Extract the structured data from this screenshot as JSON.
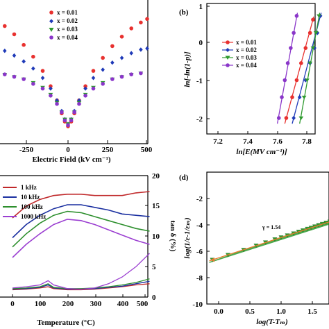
{
  "panels": {
    "a": {
      "xlabel": "Electric Field  (kV cm⁻¹)",
      "xticks": [
        "-250",
        "0",
        "250",
        "500"
      ]
    },
    "b": {
      "tag": "(b)",
      "xlabel": "ln[E(MV cm⁻¹)]",
      "ylabel": "ln[-ln(1-p)]",
      "xticks": [
        "7.2",
        "7.4",
        "7.6",
        "7.8"
      ],
      "yticks": [
        "1",
        "0",
        "-1",
        "-2"
      ]
    },
    "c": {
      "xlabel": "Temperature (°C)",
      "ylabel_right": "tan δ (%)",
      "xticks": [
        "0",
        "100",
        "200",
        "300",
        "400",
        "500"
      ],
      "yticks_right": [
        "20",
        "15",
        "10",
        "5",
        "0"
      ]
    },
    "d": {
      "tag": "(d)",
      "xlabel": "log(T-Tₘ)",
      "ylabel": "log(1/ε-1/εₘ)",
      "annotation": "γ = 1.54",
      "xticks": [
        "0.0",
        "0.5",
        "1.0",
        "1.5"
      ],
      "yticks": [
        "-2",
        "-4",
        "-6",
        "-8",
        "-10"
      ]
    }
  },
  "colors": {
    "x001": "#e8312f",
    "x002": "#1f3ab8",
    "x003": "#2e9a2e",
    "x004": "#8a36c9",
    "kHz1": "#c0282a",
    "kHz10": "#1a2fa0",
    "kHz100": "#2d8f2d",
    "kHz1000": "#9b3fd1",
    "fit": "#e87d2f"
  },
  "chart_data": [
    {
      "panel": "a",
      "type": "scatter",
      "xlabel": "Electric Field  (kV cm⁻¹)",
      "xlim": [
        -420,
        500
      ],
      "legend_position": "top-right",
      "series": [
        {
          "name": "x = 0.01",
          "marker": "circle",
          "x": [
            -400,
            -340,
            -280,
            -220,
            -160,
            -110,
            -70,
            -40,
            -20,
            0,
            20,
            40,
            70,
            110,
            160,
            220,
            280,
            340,
            400,
            460,
            500
          ],
          "y": [
            0.85,
            0.78,
            0.69,
            0.59,
            0.47,
            0.34,
            0.22,
            0.11,
            0.04,
            0.0,
            0.04,
            0.11,
            0.22,
            0.34,
            0.47,
            0.58,
            0.68,
            0.76,
            0.83,
            0.88,
            0.91
          ]
        },
        {
          "name": "x = 0.02",
          "marker": "diamond",
          "x": [
            -400,
            -340,
            -280,
            -220,
            -160,
            -110,
            -70,
            -40,
            -20,
            0,
            20,
            40,
            70,
            110,
            160,
            220,
            280,
            340,
            400,
            460,
            500
          ],
          "y": [
            0.64,
            0.6,
            0.55,
            0.49,
            0.41,
            0.32,
            0.22,
            0.13,
            0.06,
            0.02,
            0.06,
            0.13,
            0.22,
            0.32,
            0.41,
            0.48,
            0.54,
            0.58,
            0.62,
            0.65,
            0.66
          ]
        },
        {
          "name": "x = 0.03",
          "marker": "triangle-down",
          "x": [
            -400,
            -340,
            -280,
            -220,
            -160,
            -110,
            -70,
            -40,
            -20,
            0,
            20,
            40,
            70,
            110,
            160,
            220,
            280,
            340,
            400,
            460
          ],
          "y": [
            0.44,
            0.42,
            0.4,
            0.37,
            0.33,
            0.27,
            0.2,
            0.12,
            0.06,
            0.02,
            0.06,
            0.12,
            0.2,
            0.27,
            0.33,
            0.37,
            0.4,
            0.42,
            0.44,
            0.45
          ]
        },
        {
          "name": "x = 0.04",
          "marker": "circle",
          "x": [
            -400,
            -340,
            -280,
            -220,
            -160,
            -110,
            -70,
            -40,
            -20,
            0,
            20,
            40,
            70,
            110,
            160,
            220,
            280,
            340,
            400,
            460
          ],
          "y": [
            0.44,
            0.42,
            0.4,
            0.36,
            0.32,
            0.26,
            0.19,
            0.12,
            0.05,
            0.01,
            0.05,
            0.12,
            0.19,
            0.26,
            0.32,
            0.36,
            0.4,
            0.42,
            0.44,
            0.45
          ]
        }
      ]
    },
    {
      "panel": "b",
      "type": "scatter",
      "xlabel": "ln[E(MV cm⁻¹)]",
      "ylabel": "ln[-ln(1-p)]",
      "xlim": [
        7.15,
        7.95
      ],
      "ylim": [
        -2.3,
        1.0
      ],
      "legend_position": "center-left",
      "series": [
        {
          "name": "x = 0.01",
          "marker": "circle",
          "x": [
            7.66,
            7.7,
            7.73,
            7.76,
            7.79,
            7.82,
            7.84
          ],
          "y": [
            -2.0,
            -1.45,
            -1.0,
            -0.55,
            -0.15,
            0.25,
            0.6
          ]
        },
        {
          "name": "x = 0.02",
          "marker": "diamond",
          "x": [
            7.71,
            7.75,
            7.79,
            7.82,
            7.85,
            7.87,
            7.89
          ],
          "y": [
            -2.0,
            -1.45,
            -1.0,
            -0.55,
            -0.15,
            0.25,
            0.7
          ]
        },
        {
          "name": "x = 0.03",
          "marker": "triangle-down",
          "x": [
            7.76,
            7.78,
            7.8,
            7.82,
            7.84,
            7.86,
            7.88
          ],
          "y": [
            -2.0,
            -1.45,
            -1.0,
            -0.55,
            -0.15,
            0.25,
            0.7
          ]
        },
        {
          "name": "x = 0.04",
          "marker": "circle",
          "x": [
            7.61,
            7.63,
            7.65,
            7.67,
            7.69,
            7.71,
            7.73
          ],
          "y": [
            -2.0,
            -1.45,
            -1.0,
            -0.55,
            -0.15,
            0.25,
            0.7
          ]
        }
      ]
    },
    {
      "panel": "c",
      "type": "line",
      "xlabel": "Temperature (°C)",
      "ylabel_right": "tan δ (%)",
      "xlim": [
        -10,
        510
      ],
      "legend_position": "top-left",
      "series": [
        {
          "name": "1 kHz",
          "x": [
            0,
            50,
            100,
            150,
            200,
            250,
            300,
            350,
            400,
            450,
            500
          ],
          "y": [
            0.6,
            0.69,
            0.74,
            0.77,
            0.78,
            0.78,
            0.77,
            0.77,
            0.77,
            0.79,
            0.8
          ]
        },
        {
          "name": "10 kHz",
          "x": [
            0,
            50,
            100,
            150,
            200,
            250,
            300,
            350,
            400,
            450,
            500
          ],
          "y": [
            0.45,
            0.55,
            0.62,
            0.67,
            0.7,
            0.7,
            0.68,
            0.66,
            0.63,
            0.62,
            0.61
          ]
        },
        {
          "name": "100 kHz",
          "x": [
            0,
            50,
            100,
            150,
            200,
            250,
            300,
            350,
            400,
            450,
            500
          ],
          "y": [
            0.38,
            0.48,
            0.56,
            0.62,
            0.65,
            0.64,
            0.61,
            0.58,
            0.55,
            0.52,
            0.5
          ]
        },
        {
          "name": "1000 kHz",
          "x": [
            0,
            50,
            100,
            150,
            200,
            250,
            300,
            350,
            400,
            450,
            500
          ],
          "y": [
            0.3,
            0.4,
            0.48,
            0.55,
            0.59,
            0.58,
            0.55,
            0.51,
            0.47,
            0.43,
            0.4
          ]
        }
      ],
      "tan_delta_series": [
        {
          "name": "1 kHz",
          "x": [
            0,
            50,
            100,
            130,
            150,
            200,
            250,
            300,
            350,
            400,
            450,
            500
          ],
          "y": [
            1.2,
            1.3,
            1.5,
            1.7,
            1.4,
            1.2,
            1.2,
            1.3,
            1.5,
            1.7,
            2.0,
            2.2
          ]
        },
        {
          "name": "10 kHz",
          "x": [
            0,
            50,
            100,
            130,
            150,
            200,
            250,
            300,
            350,
            400,
            450,
            500
          ],
          "y": [
            1.3,
            1.4,
            1.6,
            2.0,
            1.5,
            1.3,
            1.3,
            1.4,
            1.6,
            1.8,
            2.2,
            2.6
          ]
        },
        {
          "name": "100 kHz",
          "x": [
            0,
            50,
            100,
            130,
            150,
            200,
            250,
            300,
            350,
            400,
            450,
            500
          ],
          "y": [
            1.4,
            1.5,
            1.7,
            2.2,
            1.6,
            1.4,
            1.4,
            1.5,
            1.7,
            2.0,
            2.4,
            3.0
          ]
        },
        {
          "name": "1000 kHz",
          "x": [
            0,
            50,
            100,
            130,
            150,
            200,
            250,
            300,
            350,
            400,
            450,
            500
          ],
          "y": [
            1.5,
            1.7,
            2.0,
            2.7,
            2.0,
            1.4,
            1.3,
            1.5,
            2.2,
            3.3,
            5.0,
            7.2
          ]
        }
      ]
    },
    {
      "panel": "d",
      "type": "scatter",
      "xlabel": "log(T-Tₘ)",
      "ylabel": "log(1/ε-1/εₘ)",
      "xlim": [
        -0.25,
        1.95
      ],
      "ylim": [
        -10,
        0
      ],
      "annotation": "γ = 1.54",
      "points_x": [
        -0.1,
        0.15,
        0.4,
        0.6,
        0.75,
        0.9,
        1.0,
        1.1,
        1.2,
        1.28,
        1.35,
        1.42,
        1.48,
        1.54,
        1.6,
        1.66,
        1.72,
        1.78,
        1.84,
        1.9
      ],
      "points_y": [
        -6.65,
        -6.28,
        -5.9,
        -5.57,
        -5.33,
        -5.1,
        -4.95,
        -4.8,
        -4.65,
        -4.52,
        -4.42,
        -4.3,
        -4.22,
        -4.12,
        -4.02,
        -3.93,
        -3.84,
        -3.75,
        -3.66,
        -3.56
      ],
      "fit_line": {
        "slope": 1.54,
        "intercept": -6.5
      }
    }
  ]
}
